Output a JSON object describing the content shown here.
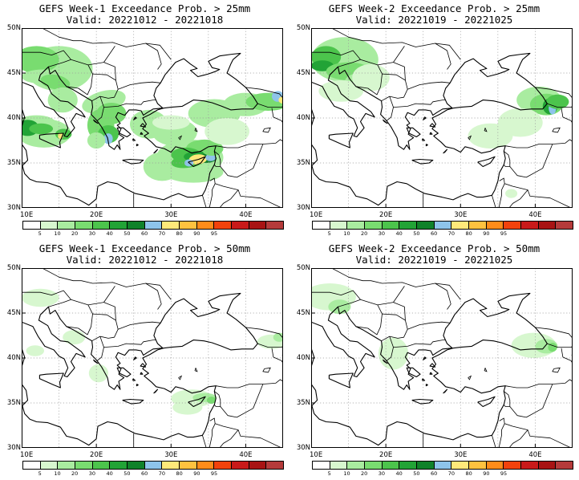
{
  "panels": [
    {
      "title": "GEFS Week-1 Exceedance Prob. > 25mm",
      "valid": "Valid: 20221012 - 20221018",
      "variant": 0
    },
    {
      "title": "GEFS Week-2 Exceedance Prob. > 25mm",
      "valid": "Valid: 20221019 - 20221025",
      "variant": 1
    },
    {
      "title": "GEFS Week-1 Exceedance Prob. > 50mm",
      "valid": "Valid: 20221012 - 20221018",
      "variant": 2
    },
    {
      "title": "GEFS Week-2 Exceedance Prob. > 50mm",
      "valid": "Valid: 20221019 - 20221025",
      "variant": 3
    }
  ],
  "map": {
    "lat_labels": [
      "50N",
      "45N",
      "40N",
      "35N",
      "30N"
    ],
    "lon_labels": [
      "10E",
      "20E",
      "30E",
      "40E"
    ]
  },
  "colorbar": {
    "colors": [
      "#ffffff",
      "#d7f7cf",
      "#a9eca0",
      "#79dc70",
      "#4cc44c",
      "#22a336",
      "#10822a",
      "#8ec4ea",
      "#ffe97a",
      "#ffc23f",
      "#ff8c1a",
      "#f2420c",
      "#c91a1a",
      "#a81313",
      "#b53a3a"
    ],
    "labels": [
      "5",
      "10",
      "20",
      "30",
      "40",
      "50",
      "60",
      "70",
      "80",
      "90",
      "95"
    ]
  }
}
